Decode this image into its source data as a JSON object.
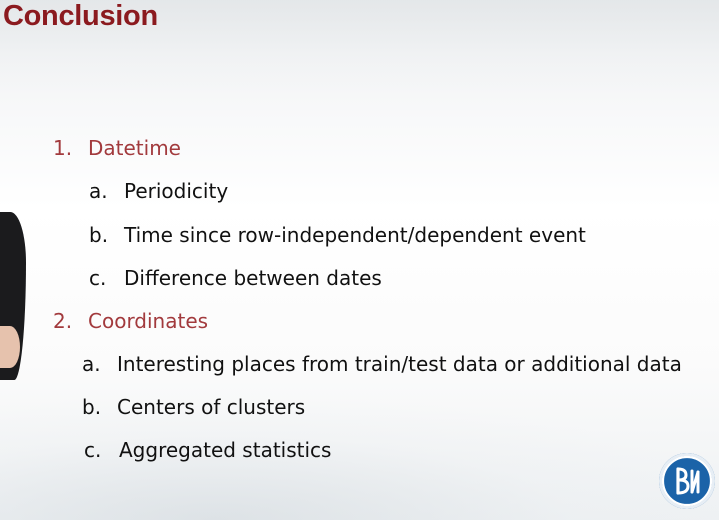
{
  "slide": {
    "title": "Conclusion"
  },
  "sections": [
    {
      "number": "1.",
      "label": "Datetime",
      "items": [
        {
          "letter": "a.",
          "text": "Periodicity"
        },
        {
          "letter": "b.",
          "text": "Time since row-independent/dependent event"
        },
        {
          "letter": "c.",
          "text": "Difference between dates"
        }
      ]
    },
    {
      "number": "2.",
      "label": "Coordinates",
      "items": [
        {
          "letter": "a.",
          "text": "Interesting places from train/test data or additional data"
        },
        {
          "letter": "b.",
          "text": "Centers of clusters"
        },
        {
          "letter": "c.",
          "text": "Aggregated statistics"
        }
      ]
    }
  ],
  "colors": {
    "title": "#8b1a1f",
    "section": "#a23a3d",
    "body": "#111111",
    "logo": "#1b63a8"
  },
  "logo_icon": "university-logo-icon"
}
